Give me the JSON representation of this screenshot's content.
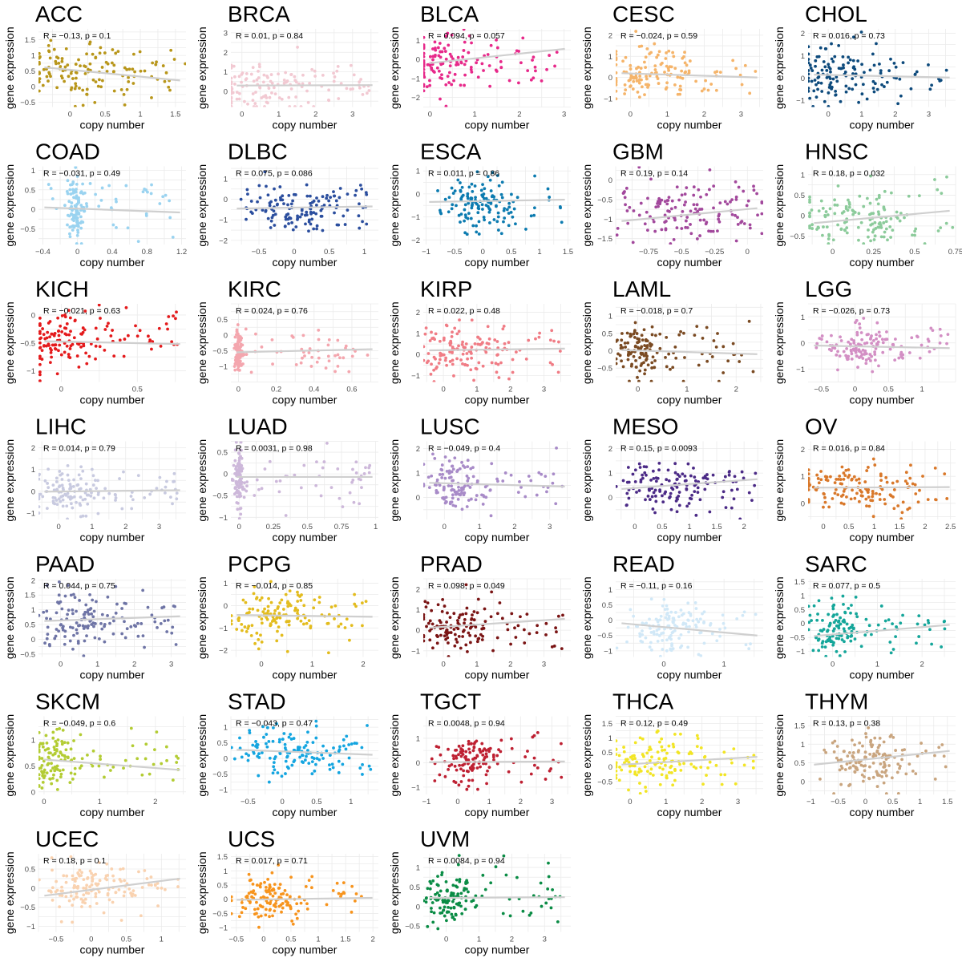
{
  "figure": {
    "xlabel": "copy number",
    "ylabel": "gene expression"
  },
  "chart_data": [
    {
      "type": "scatter",
      "title": "ACC",
      "color": "#B8961A",
      "stat_label": "R = −0.13, p = 0.1",
      "r": -0.13,
      "p": 0.1,
      "xlim": [
        -0.45,
        1.65
      ],
      "ylim": [
        -0.65,
        1.85
      ],
      "xticks": [
        0,
        0.5,
        1,
        1.5
      ],
      "yticks": [
        -0.5,
        0,
        0.5,
        1,
        1.5
      ],
      "fit": [
        0.62,
        0.2
      ],
      "dist": {
        "cx": 0.05,
        "sx": 0.5,
        "cy": 0.5,
        "sy": 0.4
      }
    },
    {
      "type": "scatter",
      "title": "BRCA",
      "color": "#F2C9D2",
      "stat_label": "R = 0.01, p = 0.84",
      "r": 0.01,
      "p": 0.84,
      "xlim": [
        -0.3,
        3.7
      ],
      "ylim": [
        -0.8,
        3.2
      ],
      "xticks": [
        0,
        1,
        2,
        3
      ],
      "yticks": [
        0,
        1,
        2,
        3
      ],
      "fit": [
        0.3,
        0.32
      ],
      "dist": {
        "cx": 0.4,
        "sx": 0.8,
        "cy": 0.3,
        "sy": 0.6
      }
    },
    {
      "type": "scatter",
      "title": "BLCA",
      "color": "#E7298A",
      "stat_label": "R = 0.094, p = 0.057",
      "r": 0.094,
      "p": 0.057,
      "xlim": [
        -0.15,
        3.15
      ],
      "ylim": [
        -2.5,
        1.6
      ],
      "xticks": [
        0,
        1,
        2,
        3
      ],
      "yticks": [
        -2,
        -1,
        0,
        1
      ],
      "fit": [
        -0.2,
        0.55
      ],
      "dist": {
        "cx": 0.2,
        "sx": 0.6,
        "cy": -0.2,
        "sy": 0.7
      }
    },
    {
      "type": "scatter",
      "title": "CESC",
      "color": "#F5B46A",
      "stat_label": "R = −0.024, p = 0.59",
      "r": -0.024,
      "p": 0.59,
      "xlim": [
        -0.4,
        3.6
      ],
      "ylim": [
        -1.4,
        2.3
      ],
      "xticks": [
        0,
        1,
        2,
        3
      ],
      "yticks": [
        -1,
        0,
        1,
        2
      ],
      "fit": [
        0.2,
        0.0
      ],
      "dist": {
        "cx": 0.3,
        "sx": 0.7,
        "cy": 0.2,
        "sy": 0.6
      }
    },
    {
      "type": "scatter",
      "title": "CHOL",
      "color": "#0D4A7C",
      "stat_label": "R = 0.016, p = 0.73",
      "r": 0.016,
      "p": 0.73,
      "xlim": [
        -0.6,
        3.8
      ],
      "ylim": [
        -1.3,
        2.2
      ],
      "xticks": [
        0,
        1,
        2,
        3
      ],
      "yticks": [
        -1,
        0,
        1,
        2
      ],
      "fit": [
        0.15,
        0.02
      ],
      "dist": {
        "cx": 0.2,
        "sx": 0.6,
        "cy": 0.2,
        "sy": 0.6
      }
    },
    {
      "type": "scatter",
      "title": "COAD",
      "color": "#9AD3F0",
      "stat_label": "R = −0.031, p = 0.49",
      "r": -0.031,
      "p": 0.49,
      "xlim": [
        -0.45,
        1.25
      ],
      "ylim": [
        -0.9,
        1.1
      ],
      "xticks": [
        -0.4,
        0,
        0.4,
        0.8,
        1.2
      ],
      "yticks": [
        -0.5,
        0,
        0.5,
        1
      ],
      "fit": [
        0.05,
        -0.08
      ],
      "dist": {
        "cx": 0.0,
        "sx": 0.05,
        "cy": 0.0,
        "sy": 0.4
      }
    },
    {
      "type": "scatter",
      "title": "DLBC",
      "color": "#2B4E9E",
      "stat_label": "R = 0.075, p = 0.086",
      "r": 0.075,
      "p": 0.086,
      "xlim": [
        -0.9,
        1.2
      ],
      "ylim": [
        -2.2,
        1.6
      ],
      "xticks": [
        -0.5,
        0,
        0.5,
        1
      ],
      "yticks": [
        -2,
        -1,
        0,
        1
      ],
      "fit": [
        -0.45,
        -0.35
      ],
      "dist": {
        "cx": 0.0,
        "sx": 0.4,
        "cy": -0.4,
        "sy": 0.6
      }
    },
    {
      "type": "scatter",
      "title": "ESCA",
      "color": "#0C7BB0",
      "stat_label": "R = 0.011, p = 0.86",
      "r": 0.011,
      "p": 0.86,
      "xlim": [
        -1.05,
        1.55
      ],
      "ylim": [
        -2.2,
        1.2
      ],
      "xticks": [
        -1,
        -0.5,
        0,
        0.5,
        1,
        1.5
      ],
      "yticks": [
        -2,
        -1,
        0,
        1
      ],
      "fit": [
        -0.35,
        -0.25
      ],
      "dist": {
        "cx": 0.0,
        "sx": 0.3,
        "cy": -0.4,
        "sy": 0.6
      }
    },
    {
      "type": "scatter",
      "title": "GBM",
      "color": "#A2489C",
      "stat_label": "R = 0.19, p = 0.14",
      "r": 0.19,
      "p": 0.14,
      "xlim": [
        -1.0,
        0.12
      ],
      "ylim": [
        -1.65,
        0.35
      ],
      "xticks": [
        -0.75,
        -0.5,
        -0.25,
        0
      ],
      "yticks": [
        -1.5,
        -1,
        -0.5,
        0
      ],
      "fit": [
        -1.05,
        -0.72
      ],
      "dist": {
        "cx": -0.45,
        "sx": 0.3,
        "cy": -0.8,
        "sy": 0.4
      }
    },
    {
      "type": "scatter",
      "title": "HNSC",
      "color": "#8CCB9B",
      "stat_label": "R = 0.18, p = 0.032",
      "r": 0.18,
      "p": 0.032,
      "xlim": [
        -0.15,
        0.75
      ],
      "ylim": [
        -0.7,
        1.2
      ],
      "xticks": [
        0,
        0.25,
        0.5,
        0.75
      ],
      "yticks": [
        -0.5,
        0,
        0.5,
        1
      ],
      "fit": [
        -0.18,
        0.12
      ],
      "dist": {
        "cx": 0.1,
        "sx": 0.2,
        "cy": 0.0,
        "sy": 0.35
      }
    },
    {
      "type": "scatter",
      "title": "KICH",
      "color": "#E41A1C",
      "stat_label": "R = −0.021, p = 0.63",
      "r": -0.021,
      "p": 0.63,
      "xlim": [
        -0.15,
        0.82
      ],
      "ylim": [
        -1.2,
        0.2
      ],
      "xticks": [
        0,
        0.5
      ],
      "yticks": [
        -1,
        -0.5,
        0
      ],
      "fit": [
        -0.47,
        -0.52
      ],
      "dist": {
        "cx": 0.0,
        "sx": 0.15,
        "cy": -0.45,
        "sy": 0.25
      }
    },
    {
      "type": "scatter",
      "title": "KIRC",
      "color": "#F4A6AE",
      "stat_label": "R = 0.024, p = 0.76",
      "r": 0.024,
      "p": 0.76,
      "xlim": [
        -0.04,
        0.74
      ],
      "ylim": [
        -1.5,
        1.0
      ],
      "xticks": [
        0,
        0.2,
        0.4,
        0.6
      ],
      "yticks": [
        -1,
        -0.5,
        0,
        0.5
      ],
      "fit": [
        -0.55,
        -0.45
      ],
      "dist": {
        "cx": 0.0,
        "sx": 0.01,
        "cy": -0.5,
        "sy": 0.35
      }
    },
    {
      "type": "scatter",
      "title": "KIRP",
      "color": "#F07C85",
      "stat_label": "R = 0.022, p = 0.48",
      "r": 0.022,
      "p": 0.48,
      "xlim": [
        -0.6,
        3.8
      ],
      "ylim": [
        -1.3,
        2.4
      ],
      "xticks": [
        0,
        1,
        2,
        3
      ],
      "yticks": [
        -1,
        0,
        1,
        2
      ],
      "fit": [
        0.2,
        0.28
      ],
      "dist": {
        "cx": 0.6,
        "sx": 0.8,
        "cy": 0.2,
        "sy": 0.6
      }
    },
    {
      "type": "scatter",
      "title": "LAML",
      "color": "#7A4A22",
      "stat_label": "R = −0.018, p = 0.7",
      "r": -0.018,
      "p": 0.7,
      "xlim": [
        -0.45,
        2.55
      ],
      "ylim": [
        -0.9,
        1.35
      ],
      "xticks": [
        0,
        1,
        2
      ],
      "yticks": [
        -0.5,
        0,
        0.5,
        1
      ],
      "fit": [
        0.02,
        -0.1
      ],
      "dist": {
        "cx": 0.0,
        "sx": 0.25,
        "cy": 0.0,
        "sy": 0.4
      }
    },
    {
      "type": "scatter",
      "title": "LGG",
      "color": "#D38FC4",
      "stat_label": "R = −0.026, p = 0.73",
      "r": -0.026,
      "p": 0.73,
      "xlim": [
        -0.7,
        1.5
      ],
      "ylim": [
        -1.5,
        1.5
      ],
      "xticks": [
        -0.5,
        0,
        0.5,
        1
      ],
      "yticks": [
        -1,
        0,
        1
      ],
      "fit": [
        -0.1,
        -0.2
      ],
      "dist": {
        "cx": 0.1,
        "sx": 0.3,
        "cy": -0.15,
        "sy": 0.4
      }
    },
    {
      "type": "scatter",
      "title": "LIHC",
      "color": "#C8CAE0",
      "stat_label": "R = 0.014, p = 0.79",
      "r": 0.014,
      "p": 0.79,
      "xlim": [
        -0.6,
        3.8
      ],
      "ylim": [
        -1.3,
        2.3
      ],
      "xticks": [
        0,
        1,
        2,
        3
      ],
      "yticks": [
        -1,
        0,
        1,
        2
      ],
      "fit": [
        -0.02,
        0.05
      ],
      "dist": {
        "cx": 0.3,
        "sx": 0.5,
        "cy": 0.0,
        "sy": 0.5
      }
    },
    {
      "type": "scatter",
      "title": "LUAD",
      "color": "#CDB8DA",
      "stat_label": "R = 0.0031, p = 0.98",
      "r": 0.0031,
      "p": 0.98,
      "xlim": [
        -0.06,
        1.02
      ],
      "ylim": [
        -1.05,
        0.75
      ],
      "xticks": [
        0,
        0.25,
        0.5,
        0.75,
        1
      ],
      "yticks": [
        -1,
        -0.5,
        0,
        0.5
      ],
      "fit": [
        -0.07,
        -0.07
      ],
      "dist": {
        "cx": 0.0,
        "sx": 0.02,
        "cy": -0.1,
        "sy": 0.35
      }
    },
    {
      "type": "scatter",
      "title": "LUSC",
      "color": "#A88BC8",
      "stat_label": "R = −0.049, p = 0.4",
      "r": -0.049,
      "p": 0.4,
      "xlim": [
        -0.6,
        3.6
      ],
      "ylim": [
        -0.9,
        2.3
      ],
      "xticks": [
        0,
        1,
        2,
        3
      ],
      "yticks": [
        0,
        1,
        2
      ],
      "fit": [
        0.6,
        0.45
      ],
      "dist": {
        "cx": 0.3,
        "sx": 0.5,
        "cy": 0.5,
        "sy": 0.5
      }
    },
    {
      "type": "scatter",
      "title": "MESO",
      "color": "#4B2A86",
      "stat_label": "R = 0.15, p = 0.0093",
      "r": 0.15,
      "p": 0.0093,
      "xlim": [
        -0.35,
        2.35
      ],
      "ylim": [
        -0.9,
        2.3
      ],
      "xticks": [
        0,
        0.5,
        1,
        1.5,
        2
      ],
      "yticks": [
        0,
        1,
        2
      ],
      "fit": [
        0.35,
        0.75
      ],
      "dist": {
        "cx": 0.5,
        "sx": 0.5,
        "cy": 0.5,
        "sy": 0.5
      }
    },
    {
      "type": "scatter",
      "title": "OV",
      "color": "#D9782A",
      "stat_label": "R = 0.016, p = 0.84",
      "r": 0.016,
      "p": 0.84,
      "xlim": [
        -0.3,
        2.6
      ],
      "ylim": [
        -0.6,
        2.3
      ],
      "xticks": [
        0,
        0.5,
        1,
        1.5,
        2,
        2.5
      ],
      "yticks": [
        0,
        1,
        2
      ],
      "fit": [
        0.58,
        0.6
      ],
      "dist": {
        "cx": 0.6,
        "sx": 0.6,
        "cy": 0.6,
        "sy": 0.5
      }
    },
    {
      "type": "scatter",
      "title": "PAAD",
      "color": "#6F75A6",
      "stat_label": "R = 0.044, p = 0.75",
      "r": 0.044,
      "p": 0.75,
      "xlim": [
        -0.6,
        3.4
      ],
      "ylim": [
        -0.6,
        2.05
      ],
      "xticks": [
        0,
        1,
        2,
        3
      ],
      "yticks": [
        -0.5,
        0,
        0.5,
        1,
        1.5,
        2
      ],
      "fit": [
        0.62,
        0.78
      ],
      "dist": {
        "cx": 0.5,
        "sx": 0.6,
        "cy": 0.7,
        "sy": 0.45
      }
    },
    {
      "type": "scatter",
      "title": "PCPG",
      "color": "#E3BC1E",
      "stat_label": "R = −0.014, p = 0.85",
      "r": -0.014,
      "p": 0.85,
      "xlim": [
        -0.6,
        2.3
      ],
      "ylim": [
        -2.3,
        1.2
      ],
      "xticks": [
        0,
        1,
        2
      ],
      "yticks": [
        -2,
        -1,
        0,
        1
      ],
      "fit": [
        -0.42,
        -0.5
      ],
      "dist": {
        "cx": 0.2,
        "sx": 0.4,
        "cy": -0.4,
        "sy": 0.6
      }
    },
    {
      "type": "scatter",
      "title": "PRAD",
      "color": "#7A1414",
      "stat_label": "R = 0.098, p = 0.049",
      "r": 0.098,
      "p": 0.049,
      "xlim": [
        -0.6,
        3.8
      ],
      "ylim": [
        -1.3,
        2.5
      ],
      "xticks": [
        0,
        1,
        2,
        3
      ],
      "yticks": [
        -1,
        0,
        1,
        2
      ],
      "fit": [
        0.12,
        0.55
      ],
      "dist": {
        "cx": 0.4,
        "sx": 0.6,
        "cy": 0.2,
        "sy": 0.6
      }
    },
    {
      "type": "scatter",
      "title": "READ",
      "color": "#D1E8F7",
      "stat_label": "R = −0.11, p = 0.16",
      "r": -0.11,
      "p": 0.16,
      "xlim": [
        -0.8,
        1.65
      ],
      "ylim": [
        -1.2,
        1.35
      ],
      "xticks": [
        0,
        1
      ],
      "yticks": [
        -1,
        -0.5,
        0,
        0.5,
        1
      ],
      "fit": [
        -0.1,
        -0.5
      ],
      "dist": {
        "cx": 0.1,
        "sx": 0.35,
        "cy": -0.2,
        "sy": 0.4
      }
    },
    {
      "type": "scatter",
      "title": "SARC",
      "color": "#15A69A",
      "stat_label": "R = 0.077, p = 0.5",
      "r": 0.077,
      "p": 0.5,
      "xlim": [
        -0.55,
        2.75
      ],
      "ylim": [
        -1.2,
        1.6
      ],
      "xticks": [
        0,
        1,
        2
      ],
      "yticks": [
        -1,
        -0.5,
        0,
        0.5,
        1,
        1.5
      ],
      "fit": [
        -0.45,
        -0.05
      ],
      "dist": {
        "cx": 0.1,
        "sx": 0.35,
        "cy": -0.2,
        "sy": 0.5
      }
    },
    {
      "type": "scatter",
      "title": "SKCM",
      "color": "#B3CC33",
      "stat_label": "R = −0.049, p = 0.6",
      "r": -0.049,
      "p": 0.6,
      "xlim": [
        -0.1,
        2.55
      ],
      "ylim": [
        -0.05,
        1.45
      ],
      "xticks": [
        0,
        1,
        2
      ],
      "yticks": [
        0,
        0.5,
        1
      ],
      "fit": [
        0.62,
        0.42
      ],
      "dist": {
        "cx": 0.1,
        "sx": 0.2,
        "cy": 0.6,
        "sy": 0.3
      }
    },
    {
      "type": "scatter",
      "title": "STAD",
      "color": "#14A5E0",
      "stat_label": "R = −0.043, p = 0.47",
      "r": -0.043,
      "p": 0.47,
      "xlim": [
        -0.75,
        1.4
      ],
      "ylim": [
        -1.15,
        1.35
      ],
      "xticks": [
        -0.5,
        0,
        0.5,
        1
      ],
      "yticks": [
        -1,
        -0.5,
        0,
        0.5,
        1
      ],
      "fit": [
        0.28,
        0.12
      ],
      "dist": {
        "cx": 0.1,
        "sx": 0.4,
        "cy": 0.2,
        "sy": 0.4
      }
    },
    {
      "type": "scatter",
      "title": "TGCT",
      "color": "#BE2032",
      "stat_label": "R = 0.0048, p = 0.94",
      "r": 0.0048,
      "p": 0.94,
      "xlim": [
        -1.1,
        3.6
      ],
      "ylim": [
        -1.3,
        1.9
      ],
      "xticks": [
        -1,
        0,
        1,
        2,
        3
      ],
      "yticks": [
        -1,
        0,
        1
      ],
      "fit": [
        0.02,
        0.05
      ],
      "dist": {
        "cx": 0.3,
        "sx": 0.5,
        "cy": 0.1,
        "sy": 0.5
      }
    },
    {
      "type": "scatter",
      "title": "THCA",
      "color": "#F2E525",
      "stat_label": "R = 0.12, p = 0.49",
      "r": 0.12,
      "p": 0.49,
      "xlim": [
        -0.4,
        3.7
      ],
      "ylim": [
        -0.95,
        1.75
      ],
      "xticks": [
        0,
        1,
        2,
        3
      ],
      "yticks": [
        -0.5,
        0,
        0.5,
        1,
        1.5
      ],
      "fit": [
        0.08,
        0.35
      ],
      "dist": {
        "cx": 0.5,
        "sx": 0.6,
        "cy": 0.2,
        "sy": 0.5
      }
    },
    {
      "type": "scatter",
      "title": "THYM",
      "color": "#C9A57F",
      "stat_label": "R = 0.13, p = 0.38",
      "r": 0.13,
      "p": 0.38,
      "xlim": [
        -1.05,
        1.65
      ],
      "ylim": [
        -0.35,
        1.75
      ],
      "xticks": [
        -1,
        -0.5,
        0,
        0.5,
        1,
        1.5
      ],
      "yticks": [
        0,
        0.5,
        1,
        1.5
      ],
      "fit": [
        0.45,
        0.82
      ],
      "dist": {
        "cx": 0.1,
        "sx": 0.35,
        "cy": 0.5,
        "sy": 0.35
      }
    },
    {
      "type": "scatter",
      "title": "UCEC",
      "color": "#F9D2B0",
      "stat_label": "R = 0.18, p = 0.1",
      "r": 0.18,
      "p": 0.1,
      "xlim": [
        -0.75,
        1.35
      ],
      "ylim": [
        -1.15,
        0.9
      ],
      "xticks": [
        -0.5,
        0,
        0.5,
        1
      ],
      "yticks": [
        -1,
        -0.5,
        0,
        0.5
      ],
      "fit": [
        -0.2,
        0.25
      ],
      "dist": {
        "cx": 0.05,
        "sx": 0.3,
        "cy": 0.0,
        "sy": 0.35
      }
    },
    {
      "type": "scatter",
      "title": "UCS",
      "color": "#F7941D",
      "stat_label": "R = 0.017, p = 0.71",
      "r": 0.017,
      "p": 0.71,
      "xlim": [
        -0.6,
        2.1
      ],
      "ylim": [
        -1.15,
        1.6
      ],
      "xticks": [
        -0.5,
        0,
        0.5,
        1,
        1.5,
        2
      ],
      "yticks": [
        -1,
        -0.5,
        0,
        0.5,
        1,
        1.5
      ],
      "fit": [
        -0.02,
        0.05
      ],
      "dist": {
        "cx": 0.1,
        "sx": 0.3,
        "cy": 0.0,
        "sy": 0.4
      }
    },
    {
      "type": "scatter",
      "title": "UVM",
      "color": "#0A8C45",
      "stat_label": "R = 0.0084, p = 0.94",
      "r": 0.0084,
      "p": 0.94,
      "xlim": [
        -0.7,
        3.8
      ],
      "ylim": [
        -0.65,
        1.35
      ],
      "xticks": [
        0,
        1,
        2,
        3
      ],
      "yticks": [
        -0.5,
        0,
        0.5,
        1
      ],
      "fit": [
        0.22,
        0.24
      ],
      "dist": {
        "cx": 0.1,
        "sx": 0.4,
        "cy": 0.2,
        "sy": 0.35
      }
    }
  ]
}
